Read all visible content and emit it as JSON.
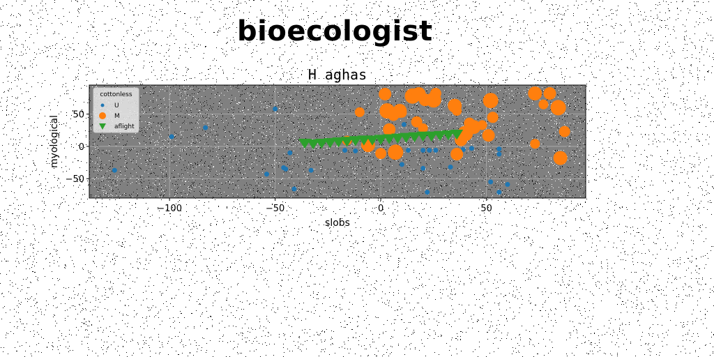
{
  "page": {
    "heading": "bioecologist"
  },
  "chart_data": {
    "type": "scatter",
    "title": "H aghas",
    "xlabel": "slobs",
    "ylabel": "myological",
    "xlim": [
      -138,
      97
    ],
    "ylim": [
      -80,
      95
    ],
    "xticks": [
      -100,
      -50,
      0,
      50
    ],
    "yticks": [
      -50,
      0,
      50
    ],
    "grid": true,
    "background": "#808080",
    "legend": {
      "title": "cottonless",
      "placement": "top-left"
    },
    "series": [
      {
        "name": "U",
        "marker": "circle",
        "color": "#1f77b4",
        "points": [
          [
            -50,
            58
          ],
          [
            -83,
            29
          ],
          [
            -99,
            15
          ],
          [
            -126,
            -37
          ],
          [
            -54,
            -43
          ],
          [
            -46,
            -33
          ],
          [
            -45,
            -35
          ],
          [
            -43,
            -10
          ],
          [
            -41,
            -66
          ],
          [
            -33,
            -37
          ],
          [
            -17,
            -6
          ],
          [
            -12,
            -7
          ],
          [
            -8,
            -3
          ],
          [
            -5,
            6
          ],
          [
            11,
            34
          ],
          [
            13,
            -6
          ],
          [
            10,
            -28
          ],
          [
            20,
            -34
          ],
          [
            20,
            -6
          ],
          [
            23,
            -6
          ],
          [
            26,
            -6
          ],
          [
            22,
            -71
          ],
          [
            33,
            -32
          ],
          [
            37,
            -8
          ],
          [
            39,
            -5
          ],
          [
            43,
            -3
          ],
          [
            52,
            -55
          ],
          [
            56,
            -71
          ],
          [
            56,
            -4
          ],
          [
            56,
            -12
          ],
          [
            60,
            -59
          ]
        ]
      },
      {
        "name": "M",
        "marker": "circle",
        "color": "#ff7f0e",
        "points": [
          [
            -10,
            53
          ],
          [
            2,
            81
          ],
          [
            3,
            55
          ],
          [
            6,
            48
          ],
          [
            9,
            55
          ],
          [
            10,
            52
          ],
          [
            4,
            26
          ],
          [
            15,
            78
          ],
          [
            17,
            38
          ],
          [
            18,
            81
          ],
          [
            20,
            28
          ],
          [
            21,
            72
          ],
          [
            25,
            72
          ],
          [
            26,
            82
          ],
          [
            35,
            63
          ],
          [
            36,
            55
          ],
          [
            38,
            10
          ],
          [
            40,
            20
          ],
          [
            42,
            36
          ],
          [
            44,
            30
          ],
          [
            48,
            33
          ],
          [
            51,
            17
          ],
          [
            52,
            71
          ],
          [
            53,
            45
          ],
          [
            73,
            82
          ],
          [
            77,
            65
          ],
          [
            80,
            82
          ],
          [
            84,
            60
          ],
          [
            87,
            23
          ],
          [
            85,
            -18
          ],
          [
            73,
            4
          ],
          [
            36,
            -12
          ],
          [
            7,
            -9
          ],
          [
            0,
            -11
          ],
          [
            -6,
            2
          ],
          [
            -16,
            9
          ]
        ]
      },
      {
        "name": "aflight",
        "marker": "triangle-down",
        "color": "#2ca02c",
        "points": [
          [
            -36,
            6
          ],
          [
            -32,
            5
          ],
          [
            -28,
            6
          ],
          [
            -24,
            7
          ],
          [
            -20,
            8
          ],
          [
            -16,
            9
          ],
          [
            -12,
            10
          ],
          [
            -8,
            11
          ],
          [
            -4,
            11
          ],
          [
            0,
            12
          ],
          [
            4,
            13
          ],
          [
            8,
            14
          ],
          [
            12,
            15
          ],
          [
            16,
            16
          ],
          [
            20,
            17
          ],
          [
            24,
            17
          ],
          [
            28,
            18
          ],
          [
            32,
            19
          ],
          [
            36,
            20
          ]
        ]
      }
    ]
  }
}
